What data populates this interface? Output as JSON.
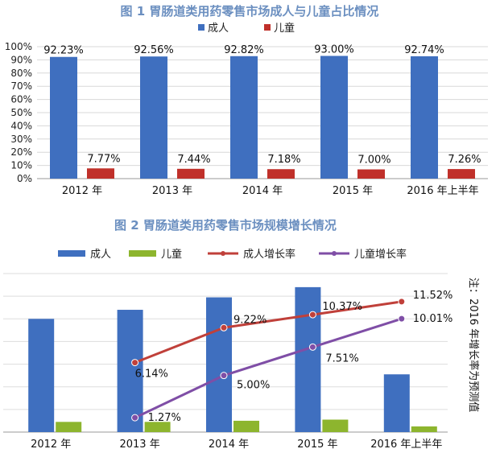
{
  "chart_data": [
    {
      "type": "bar",
      "title": "图 1  胃肠道类用药零售市场成人与儿童占比情况",
      "categories": [
        "2012 年",
        "2013 年",
        "2014 年",
        "2015 年",
        "2016 年上半年"
      ],
      "series": [
        {
          "name": "成人",
          "values": [
            92.23,
            92.56,
            92.82,
            93.0,
            92.74
          ],
          "labels": [
            "92.23%",
            "92.56%",
            "92.82%",
            "93.00%",
            "92.74%"
          ],
          "color": "#3f6fbf"
        },
        {
          "name": "儿童",
          "values": [
            7.77,
            7.44,
            7.18,
            7.0,
            7.26
          ],
          "labels": [
            "7.77%",
            "7.44%",
            "7.18%",
            "7.00%",
            "7.26%"
          ],
          "color": "#c0302a"
        }
      ],
      "ylim": [
        0,
        100
      ],
      "yticks": [
        "0%",
        "10%",
        "20%",
        "30%",
        "40%",
        "50%",
        "60%",
        "70%",
        "80%",
        "90%",
        "100%"
      ],
      "grid": true,
      "legend": "top-center",
      "title_color": "#6b8fc0"
    },
    {
      "type": "bar",
      "title": "图 2  胃肠道类用药零售市场规模增长情况",
      "categories": [
        "2012 年",
        "2013 年",
        "2014 年",
        "2015 年",
        "2016 年上半年"
      ],
      "bar_series": [
        {
          "name": "成人",
          "values": [
            100,
            108,
            119,
            128,
            51
          ],
          "color": "#3f6fbf"
        },
        {
          "name": "儿童",
          "values": [
            9,
            9,
            10,
            11,
            5
          ],
          "color": "#8db52e"
        }
      ],
      "line_series": [
        {
          "name": "成人增长率",
          "values": [
            null,
            6.14,
            9.22,
            10.37,
            11.52
          ],
          "labels": [
            "",
            "6.14%",
            "9.22%",
            "10.37%",
            "11.52%"
          ],
          "color": "#c0403a"
        },
        {
          "name": "儿童增长率",
          "values": [
            null,
            1.27,
            5.0,
            7.51,
            10.01
          ],
          "labels": [
            "",
            "1.27%",
            "5.00%",
            "7.51%",
            "10.01%"
          ],
          "color": "#7f4ea6"
        }
      ],
      "bar_ylim": [
        0,
        140
      ],
      "line_ylim": [
        0,
        14
      ],
      "grid": true,
      "legend": "top-left",
      "note": "注：2016 年增长率为预测值",
      "title_color": "#6b8fc0"
    }
  ]
}
